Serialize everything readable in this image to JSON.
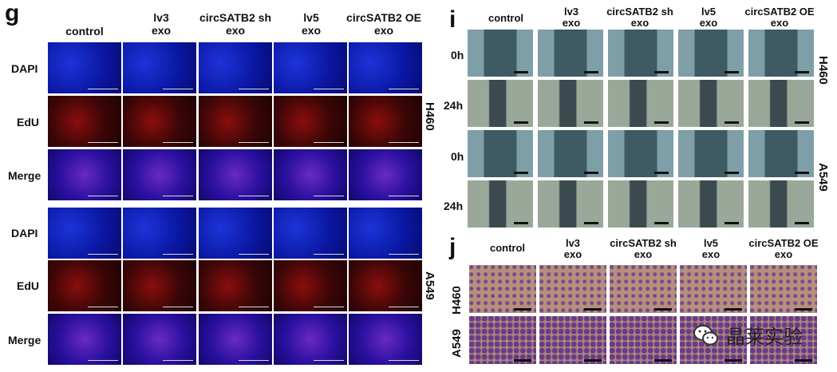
{
  "panel_g": {
    "label": "g",
    "columns": [
      "control",
      "lv3\nexo",
      "circSATB2 sh\nexo",
      "lv5\nexo",
      "circSATB2 OE\nexo"
    ],
    "rows": [
      "DAPI",
      "EdU",
      "Merge",
      "DAPI",
      "EdU",
      "Merge"
    ],
    "cell_lines": [
      "H460",
      "A549"
    ]
  },
  "panel_i": {
    "label": "i",
    "columns": [
      "control",
      "lv3\nexo",
      "circSATB2 sh\nexo",
      "lv5\nexo",
      "circSATB2 OE\nexo"
    ],
    "rows": [
      "0h",
      "24h",
      "0h",
      "24h"
    ],
    "cell_lines": [
      "H460",
      "A549"
    ]
  },
  "panel_j": {
    "label": "j",
    "columns": [
      "control",
      "lv3\nexo",
      "circSATB2 sh\nexo",
      "lv5\nexo",
      "circSATB2 OE\nexo"
    ],
    "cell_lines": [
      "H460",
      "A549"
    ]
  },
  "watermark": {
    "text": "晶莱实验",
    "icon": "wechat-icon"
  },
  "colors": {
    "dapi": "#0b1aa8",
    "edu": "#6a0a0a",
    "merge": "#3a1a9a",
    "scratch": "#8aa6ad",
    "transwell": "#b58f7a",
    "stain": "#6a3a8a"
  }
}
